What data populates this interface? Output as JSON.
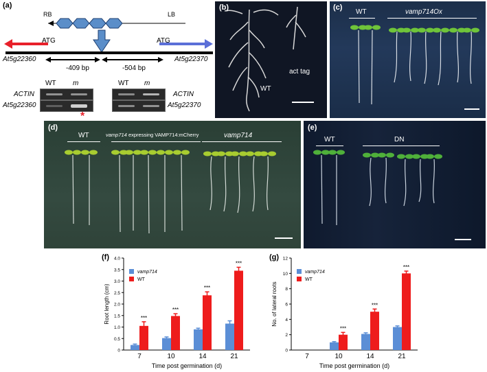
{
  "panel_a": {
    "label": "(a)",
    "rb": "RB",
    "lb": "LB",
    "atg_left": "ATG",
    "atg_right": "ATG",
    "gene_left": "At5g22360",
    "gene_right": "At5g22370",
    "dist_left": "-409 bp",
    "dist_right": "-504 bp",
    "gel1": {
      "wt": "WT",
      "m": "m",
      "row1": "ACTIN",
      "row2": "At5g22360",
      "star": "*"
    },
    "gel2": {
      "wt": "WT",
      "m": "m",
      "row1": "ACTIN",
      "row2": "At5g22370"
    },
    "colors": {
      "left_arrow": "#e8202a",
      "right_arrow": "#5b6fd8",
      "insert": "#5b8ec9",
      "star": "#e8202a"
    }
  },
  "panel_b": {
    "label": "(b)",
    "wt": "WT",
    "act": "act tag"
  },
  "panel_c": {
    "label": "(c)",
    "wt": "WT",
    "ox": "vamp714Ox"
  },
  "panel_d": {
    "label": "(d)",
    "wt": "WT",
    "mid": "vamp714 expressing VAMP714:mCherry",
    "mid_italic": "vamp714",
    "mid_rest": " expressing VAMP714:mCherry",
    "right": "vamp714"
  },
  "panel_e": {
    "label": "(e)",
    "wt": "WT",
    "dn": "DN"
  },
  "chart_data": [
    {
      "panel": "(f)",
      "type": "bar",
      "ylabel": "Root length (cm)",
      "xlabel": "Time post germination (d)",
      "categories": [
        "7",
        "10",
        "14",
        "21"
      ],
      "ylim": [
        0,
        4.0
      ],
      "yticks": [
        "0",
        "0.5",
        "1.0",
        "1.5",
        "2.0",
        "2.5",
        "3.0",
        "3.5",
        "4.0"
      ],
      "series": [
        {
          "name": "vamp714",
          "color": "#5b8ed6",
          "values": [
            0.22,
            0.52,
            0.9,
            1.15
          ],
          "err": [
            0.04,
            0.05,
            0.05,
            0.12
          ]
        },
        {
          "name": "WT",
          "color": "#ee1c1c",
          "values": [
            1.05,
            1.48,
            2.38,
            3.45
          ],
          "err": [
            0.18,
            0.1,
            0.15,
            0.15
          ]
        }
      ],
      "sig": [
        "***",
        "***",
        "***",
        "***"
      ]
    },
    {
      "panel": "(g)",
      "type": "bar",
      "ylabel": "No. of lateral roots",
      "xlabel": "Time post germination (d)",
      "categories": [
        "7",
        "10",
        "14",
        "21"
      ],
      "ylim": [
        0,
        12
      ],
      "yticks": [
        "0",
        "2",
        "4",
        "6",
        "8",
        "10",
        "12"
      ],
      "series": [
        {
          "name": "vamp714",
          "color": "#5b8ed6",
          "values": [
            0,
            1.0,
            2.1,
            3.0
          ],
          "err": [
            0,
            0.1,
            0.15,
            0.15
          ]
        },
        {
          "name": "WT",
          "color": "#ee1c1c",
          "values": [
            0,
            2.0,
            5.0,
            10.0
          ],
          "err": [
            0,
            0.3,
            0.35,
            0.3
          ]
        }
      ],
      "sig": [
        "",
        "***",
        "***",
        "***"
      ]
    }
  ]
}
